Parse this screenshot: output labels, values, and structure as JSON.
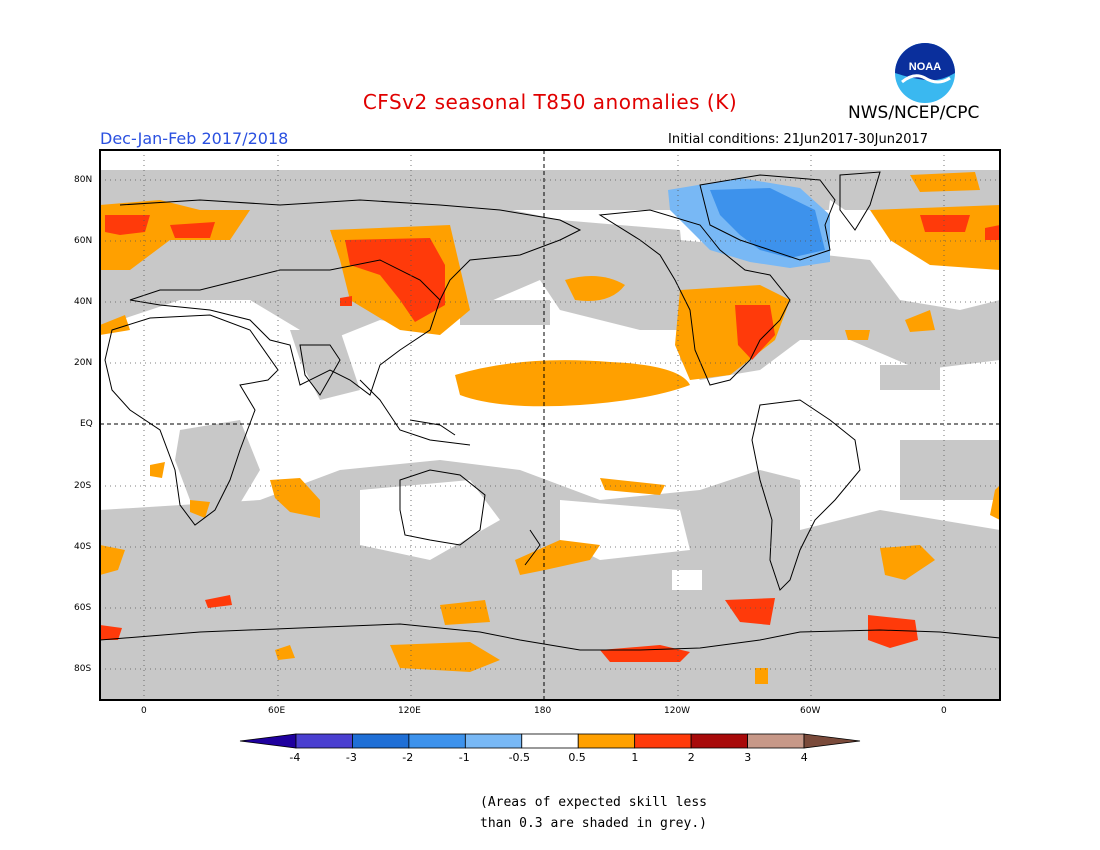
{
  "title": "CFSv2 seasonal T850 anomalies (K)",
  "season": "Dec-Jan-Feb 2017/2018",
  "initial_conditions": "Initial conditions: 21Jun2017-30Jun2017",
  "agency": "NWS/NCEP/CPC",
  "logo_text": "NOAA",
  "lat_labels": [
    "80N",
    "60N",
    "40N",
    "20N",
    "EQ",
    "20S",
    "40S",
    "60S",
    "80S"
  ],
  "lon_labels": [
    "0",
    "60E",
    "120E",
    "180",
    "120W",
    "60W",
    "0"
  ],
  "colorbar": {
    "levels": [
      "-4",
      "-3",
      "-2",
      "-1",
      "-0.5",
      "0.5",
      "1",
      "2",
      "3",
      "4"
    ],
    "colors": [
      "#1f009e",
      "#4a3fd0",
      "#1f6fd6",
      "#3d92ec",
      "#78b8f5",
      "#ffffff",
      "#ffa000",
      "#ff3a0a",
      "#a80a0a",
      "#c79888",
      "#7a4a3a"
    ]
  },
  "colors": {
    "skill_grey": "#c8c8c8",
    "warm_05_1": "#ffa000",
    "warm_1_2": "#ff3a0a",
    "cool_05_1": "#78b8f5",
    "cool_1_2": "#3d92ec",
    "title_red": "#e00000",
    "season_blue": "#2a50e0"
  },
  "note_line1": "(Areas of expected skill less",
  "note_line2": "than 0.3 are shaded in grey.)"
}
